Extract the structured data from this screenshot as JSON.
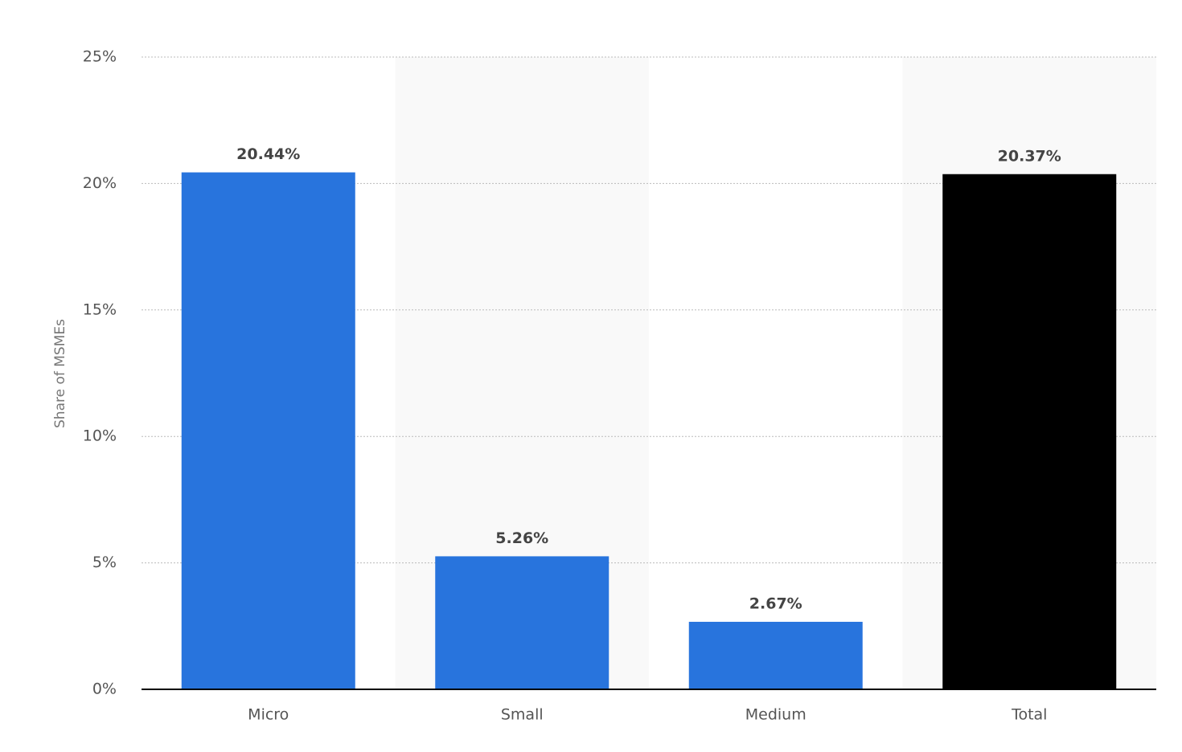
{
  "chart_data": {
    "type": "bar",
    "y_label": "Share of MSMEs",
    "categories": [
      "Micro",
      "Small",
      "Medium",
      "Total"
    ],
    "values": [
      20.44,
      5.26,
      2.67,
      20.37
    ],
    "value_labels": [
      "20.44%",
      "5.26%",
      "2.67%",
      "20.37%"
    ],
    "colors": [
      "#2874dd",
      "#2874dd",
      "#2874dd",
      "#000000"
    ],
    "ylim": [
      0,
      25
    ],
    "yticks": [
      {
        "value": 0,
        "label": "0%"
      },
      {
        "value": 5,
        "label": "5%"
      },
      {
        "value": 10,
        "label": "10%"
      },
      {
        "value": 15,
        "label": "15%"
      },
      {
        "value": 20,
        "label": "20%"
      },
      {
        "value": 25,
        "label": "25%"
      }
    ],
    "grid": true
  }
}
